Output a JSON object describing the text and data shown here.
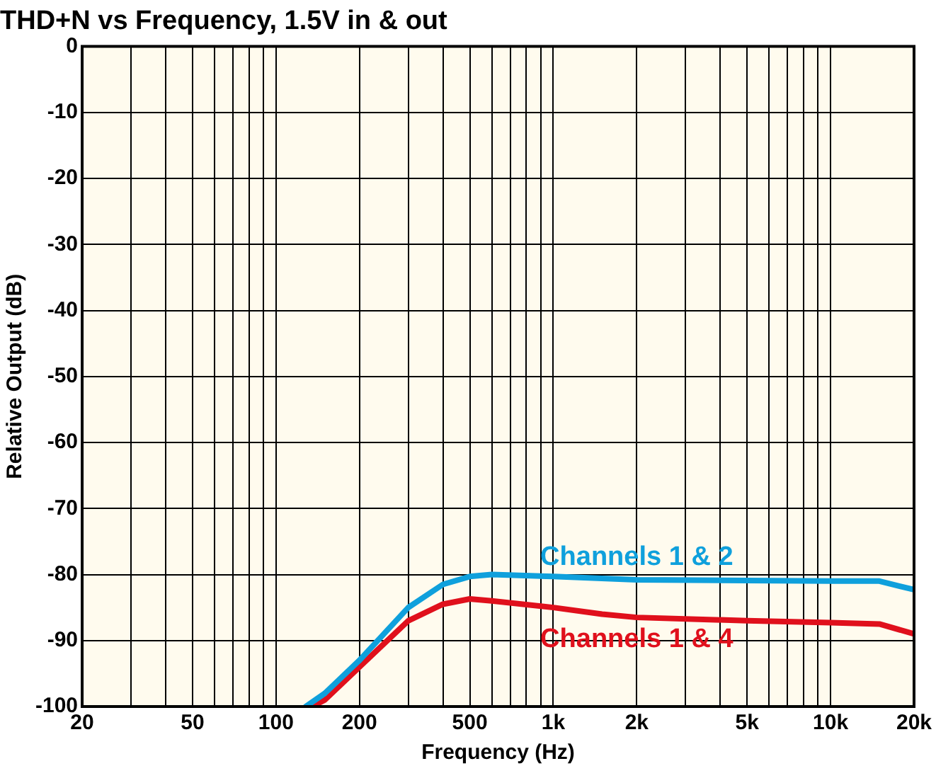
{
  "chart_data": {
    "type": "line",
    "title": "THD+N vs Frequency, 1.5V in & out",
    "xlabel": "Frequency (Hz)",
    "ylabel": "Relative Output (dB)",
    "log": "x",
    "grid": true,
    "legend": false,
    "marker": "none",
    "line_style": "solid",
    "xlim": [
      20,
      20000
    ],
    "ylim": [
      -100,
      0
    ],
    "xticks": [
      20,
      {
        "value": 30,
        "label": null
      },
      {
        "value": 40,
        "label": null
      },
      50,
      {
        "value": 60,
        "label": null
      },
      {
        "value": 70,
        "label": null
      },
      {
        "value": 80,
        "label": null
      },
      {
        "value": 90,
        "label": null
      },
      100,
      200,
      {
        "value": 300,
        "label": null
      },
      {
        "value": 400,
        "label": null
      },
      500,
      {
        "value": 600,
        "label": null
      },
      {
        "value": 700,
        "label": null
      },
      {
        "value": 800,
        "label": null
      },
      {
        "value": 900,
        "label": null
      },
      {
        "value": 1000,
        "label": "1k"
      },
      {
        "value": 2000,
        "label": "2k"
      },
      {
        "value": 3000,
        "label": null
      },
      {
        "value": 4000,
        "label": null
      },
      {
        "value": 5000,
        "label": "5k"
      },
      {
        "value": 6000,
        "label": null
      },
      {
        "value": 7000,
        "label": null
      },
      {
        "value": 8000,
        "label": null
      },
      {
        "value": 9000,
        "label": null
      },
      {
        "value": 10000,
        "label": "10k"
      },
      {
        "value": 20000,
        "label": "20k"
      }
    ],
    "yticks": [
      -100,
      -90,
      -80,
      -70,
      -60,
      -50,
      -40,
      -30,
      -20,
      -10,
      0
    ],
    "series": [
      {
        "name": "Channels 1 & 2",
        "color": "#0fa0dc",
        "x": [
          128,
          150,
          200,
          300,
          400,
          500,
          600,
          1000,
          2000,
          5000,
          10000,
          15000,
          20000
        ],
        "values": [
          -100,
          -98,
          -93,
          -85,
          -81.5,
          -80.3,
          -80,
          -80.3,
          -80.8,
          -80.9,
          -81,
          -81,
          -82.3
        ]
      },
      {
        "name": "Channels 1 & 4",
        "color": "#e0101c",
        "x": [
          135,
          150,
          200,
          300,
          400,
          500,
          600,
          1000,
          1500,
          2000,
          5000,
          10000,
          15000,
          20000
        ],
        "values": [
          -100,
          -99,
          -94,
          -87,
          -84.5,
          -83.7,
          -84,
          -85,
          -86,
          -86.5,
          -87,
          -87.3,
          -87.5,
          -89
        ]
      }
    ]
  }
}
